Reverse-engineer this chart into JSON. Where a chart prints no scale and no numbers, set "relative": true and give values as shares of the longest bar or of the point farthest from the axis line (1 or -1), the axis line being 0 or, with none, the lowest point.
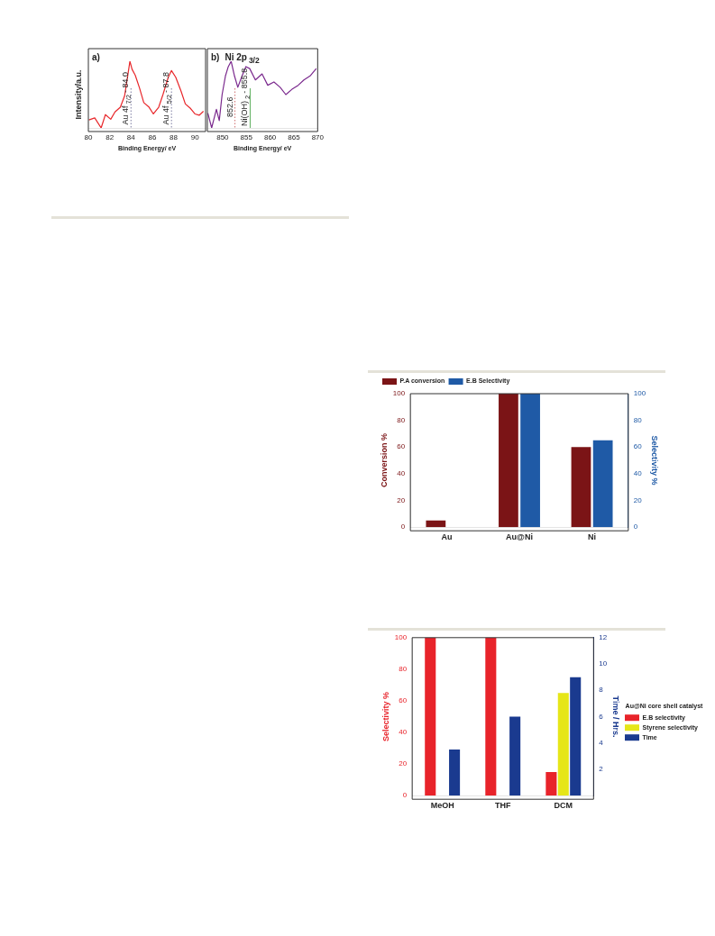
{
  "chart_data": [
    {
      "type": "line",
      "annotations": [
        "a)"
      ],
      "xlabel": "Binding Energy/ eV",
      "ylabel": "Intensity/a.u.",
      "relative": true,
      "tick_labels": "x",
      "grid": false,
      "legend": false,
      "xlim": [
        80,
        91
      ],
      "xticks": [
        80,
        82,
        84,
        86,
        88,
        90
      ],
      "ref_lines": [
        {
          "axis": "x",
          "value": 84.0,
          "label": "Au 4f$_{7/2}$- 84.0",
          "color": "#7a7aa0",
          "line_style": "dotted"
        },
        {
          "axis": "x",
          "value": 87.8,
          "label": "Au 4f$_{5/2}$- 87.8",
          "color": "#7a7aa0",
          "line_style": "dotted"
        }
      ],
      "series": [
        {
          "color": "#e8262a",
          "x": [
            80.05,
            80.6,
            81.2,
            81.6,
            82.1,
            82.5,
            83.0,
            83.4,
            83.7,
            83.9,
            84.1,
            84.4,
            84.8,
            85.2,
            85.7,
            86.1,
            86.6,
            87.0,
            87.5,
            87.8,
            88.2,
            88.7,
            89.1,
            89.6,
            90.0,
            90.4,
            90.8
          ],
          "values": [
            0.12,
            0.15,
            0,
            0.2,
            0.13,
            0.24,
            0.31,
            0.48,
            0.79,
            1,
            0.88,
            0.79,
            0.6,
            0.38,
            0.31,
            0.21,
            0.31,
            0.5,
            0.76,
            0.86,
            0.76,
            0.55,
            0.36,
            0.29,
            0.21,
            0.19,
            0.25
          ]
        }
      ]
    },
    {
      "type": "line",
      "annotations": [
        "b)",
        "Ni 2p$_{3/2}$"
      ],
      "xlabel": "Binding Energy/ eV",
      "relative": true,
      "tick_labels": "x",
      "grid": false,
      "legend": false,
      "xlim": [
        846.8,
        870
      ],
      "xticks": [
        850,
        855,
        860,
        865,
        870
      ],
      "ref_lines": [
        {
          "axis": "x",
          "value": 852.6,
          "label": "852.6",
          "color": "#d07070",
          "line_style": "dotted"
        },
        {
          "axis": "x",
          "value": 855.8,
          "label": "Ni(OH)$_{2}$- 855.8",
          "color": "#60b060",
          "line_style": "solid"
        }
      ],
      "series": [
        {
          "color": "#7b2a8e",
          "x": [
            846.9,
            847.7,
            848.7,
            849.3,
            849.9,
            850.6,
            851.2,
            851.8,
            852.5,
            853.2,
            854.1,
            854.9,
            855.7,
            856.9,
            858.3,
            859.5,
            860.8,
            862.1,
            863.3,
            864.6,
            865.9,
            867.1,
            868.4,
            869.7
          ],
          "values": [
            0.22,
            0,
            0.28,
            0.11,
            0.5,
            0.78,
            0.92,
            1,
            0.78,
            0.61,
            0.78,
            0.92,
            0.89,
            0.72,
            0.81,
            0.64,
            0.69,
            0.61,
            0.5,
            0.58,
            0.64,
            0.72,
            0.78,
            0.89
          ]
        }
      ]
    },
    {
      "type": "bar",
      "categories": [
        "Au",
        "Au@Ni",
        "Ni"
      ],
      "ylabel": "Conversion %",
      "y2label": "Selectivity %",
      "ylim": [
        0,
        100
      ],
      "yticks": [
        0,
        20,
        40,
        60,
        80,
        100
      ],
      "y2lim": [
        0,
        100
      ],
      "y2ticks": [
        0,
        20,
        40,
        60,
        80,
        100
      ],
      "grid": false,
      "legend": "top left",
      "series": [
        {
          "name": "P.A conversion",
          "color": "#7b1416",
          "values": [
            5,
            100,
            60
          ]
        },
        {
          "name": "E.B Selectivity",
          "color": "#1f5aa6",
          "axis": "y2",
          "values": [
            null,
            100,
            65
          ]
        }
      ]
    },
    {
      "type": "bar",
      "categories": [
        "MeOH",
        "THF",
        "DCM"
      ],
      "ylabel": "Selectivity %",
      "y2label": "Time / Hrs.",
      "legend_title": "Au@Ni core shell catalyst",
      "ylim": [
        0,
        100
      ],
      "yticks": [
        0,
        20,
        40,
        60,
        80,
        100
      ],
      "y2lim": [
        0,
        12
      ],
      "y2ticks": [
        2,
        4,
        6,
        8,
        10,
        12
      ],
      "grid": false,
      "legend": "right",
      "series": [
        {
          "name": "E.B selectivity",
          "color": "#e8232a",
          "values": [
            100,
            100,
            15
          ]
        },
        {
          "name": "Styrene selectivity",
          "color": "#e6e619",
          "values": [
            null,
            null,
            65
          ]
        },
        {
          "name": "Time",
          "color": "#1a3a8f",
          "axis": "y2",
          "values": [
            3.5,
            6,
            9
          ]
        }
      ]
    }
  ]
}
